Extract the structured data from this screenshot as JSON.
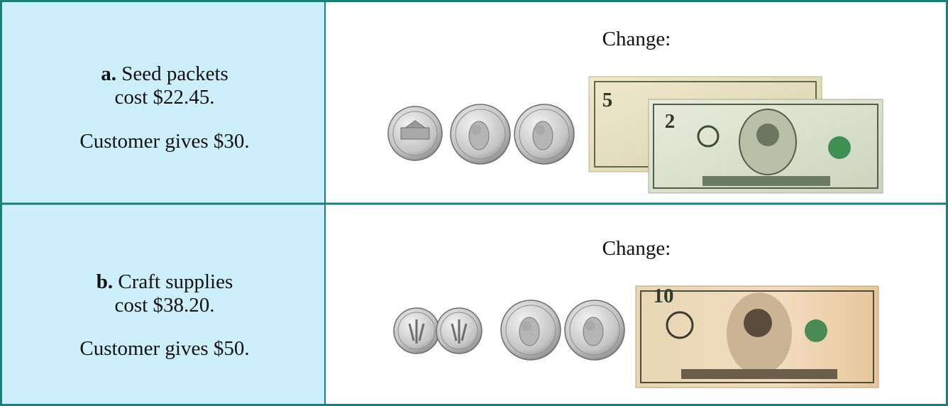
{
  "rows": [
    {
      "letter": "a.",
      "item": "Seed packets",
      "cost": "cost $22.45.",
      "gives": "Customer gives $30.",
      "change": "Change:",
      "bills": [
        "5",
        "2"
      ]
    },
    {
      "letter": "b.",
      "item": "Craft supplies",
      "cost": "cost $38.20.",
      "gives": "Customer gives $50.",
      "change": "Change:",
      "bills": [
        "10"
      ]
    }
  ]
}
